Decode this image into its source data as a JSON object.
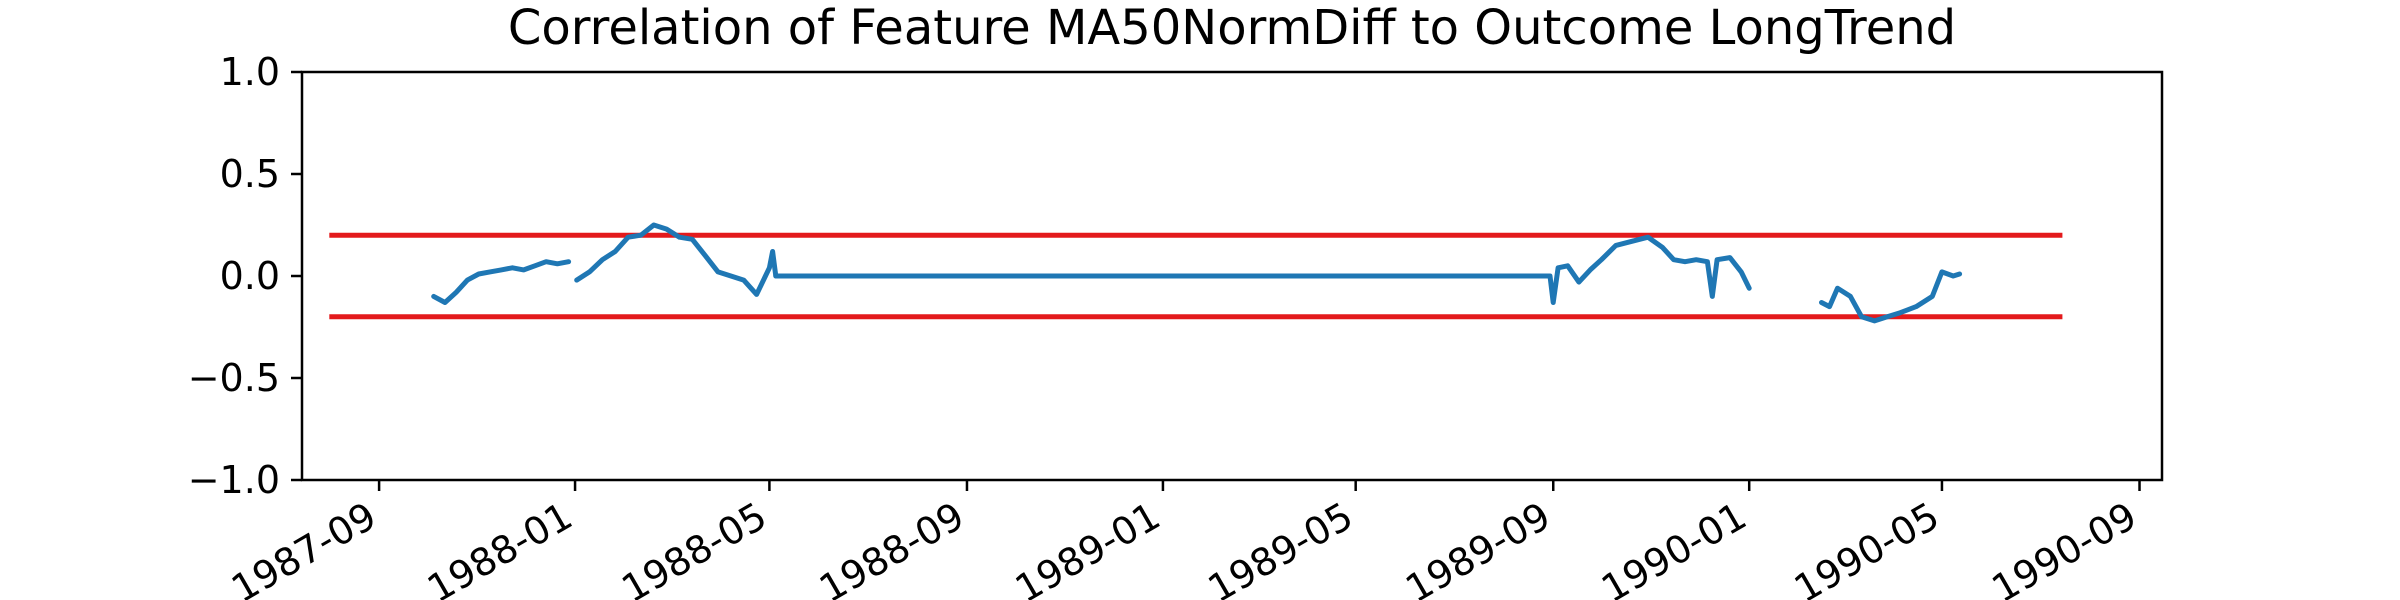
{
  "chart_data": {
    "type": "line",
    "title": "Correlation of Feature MA50NormDiff to Outcome LongTrend",
    "xlabel": "",
    "ylabel": "",
    "ylim": [
      -1.0,
      1.0
    ],
    "xlim": [
      "1987-07-15",
      "1990-09-15"
    ],
    "x_ticks": [
      "1987-09",
      "1988-01",
      "1988-05",
      "1988-09",
      "1989-01",
      "1989-05",
      "1989-09",
      "1990-01",
      "1990-05",
      "1990-09"
    ],
    "y_ticks": [
      "1.0",
      "0.5",
      "0.0",
      "−0.5",
      "−1.0"
    ],
    "y_tick_values": [
      1.0,
      0.5,
      0.0,
      -0.5,
      -1.0
    ],
    "grid": false,
    "legend": "none",
    "threshold_lines": [
      {
        "y": 0.2,
        "x_start": "1987-08-01",
        "x_end": "1990-07-15",
        "color": "#e31a1c"
      },
      {
        "y": -0.2,
        "x_start": "1987-08-01",
        "x_end": "1990-07-15",
        "color": "#e31a1c"
      }
    ],
    "series": [
      {
        "color": "#1f77b4",
        "segments": [
          {
            "x": [
              "1987-10-05",
              "1987-10-12",
              "1987-10-19",
              "1987-10-26",
              "1987-11-02",
              "1987-11-09",
              "1987-11-16",
              "1987-11-23",
              "1987-11-30",
              "1987-12-07",
              "1987-12-14",
              "1987-12-21",
              "1987-12-28"
            ],
            "y": [
              -0.1,
              -0.13,
              -0.08,
              -0.02,
              0.01,
              0.02,
              0.03,
              0.04,
              0.03,
              0.05,
              0.07,
              0.06,
              0.07
            ]
          },
          {
            "x": [
              "1988-01-02",
              "1988-01-10",
              "1988-01-18",
              "1988-01-26",
              "1988-02-03",
              "1988-02-11",
              "1988-02-19",
              "1988-02-27",
              "1988-03-06",
              "1988-03-14",
              "1988-03-22",
              "1988-03-30",
              "1988-04-07",
              "1988-04-15",
              "1988-04-23",
              "1988-05-01",
              "1988-05-03",
              "1988-05-05"
            ],
            "y": [
              -0.02,
              0.02,
              0.08,
              0.12,
              0.19,
              0.2,
              0.25,
              0.23,
              0.19,
              0.18,
              0.1,
              0.02,
              0.0,
              -0.02,
              -0.09,
              0.04,
              0.12,
              0.0
            ]
          },
          {
            "x": [
              "1988-05-05",
              "1989-08-30",
              "1989-09-01",
              "1989-09-04",
              "1989-09-10",
              "1989-09-17",
              "1989-09-24",
              "1989-10-01",
              "1989-10-10",
              "1989-10-20",
              "1989-10-30",
              "1989-11-08",
              "1989-11-15",
              "1989-11-22",
              "1989-11-29",
              "1989-12-06",
              "1989-12-09",
              "1989-12-12",
              "1989-12-20",
              "1989-12-27",
              "1990-01-01"
            ],
            "y": [
              0.0,
              0.0,
              -0.13,
              0.04,
              0.05,
              -0.03,
              0.03,
              0.08,
              0.15,
              0.17,
              0.19,
              0.14,
              0.08,
              0.07,
              0.08,
              0.07,
              -0.1,
              0.08,
              0.09,
              0.02,
              -0.06
            ]
          },
          {
            "x": [
              "1990-02-15",
              "1990-02-20",
              "1990-02-25",
              "1990-03-05",
              "1990-03-12",
              "1990-03-20",
              "1990-03-28",
              "1990-04-05",
              "1990-04-15",
              "1990-04-25",
              "1990-05-01",
              "1990-05-08",
              "1990-05-12"
            ],
            "y": [
              -0.13,
              -0.15,
              -0.06,
              -0.1,
              -0.2,
              -0.22,
              -0.2,
              -0.18,
              -0.15,
              -0.1,
              0.02,
              0.0,
              0.01
            ]
          }
        ]
      }
    ]
  }
}
